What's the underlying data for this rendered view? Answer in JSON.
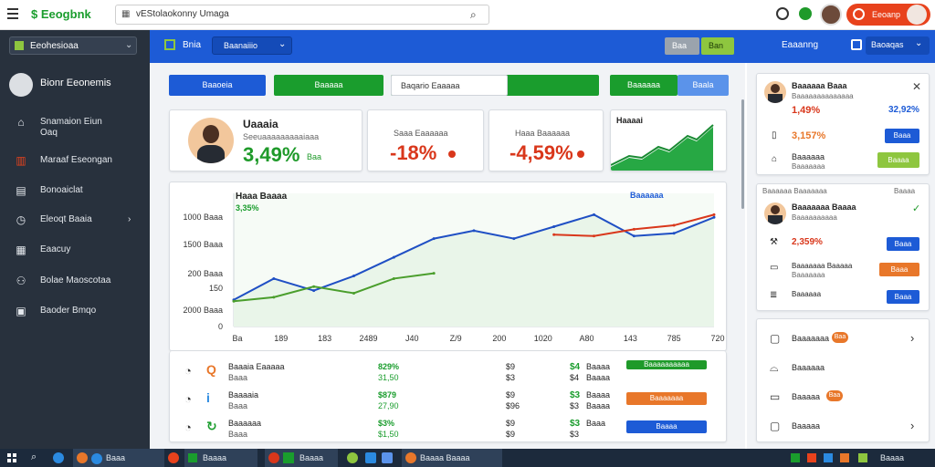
{
  "topbar": {
    "brand": "$ Eeogbnk",
    "search_text": "vEStolaokonny Umaga",
    "red_button": "Eeoanp"
  },
  "sidebar": {
    "select_label": "Eeohesioaa",
    "profile_name": "Bionr Eeonemis",
    "items": [
      {
        "label": "Snamaion Eiun",
        "sub": "Oaq",
        "icon": "home-icon"
      },
      {
        "label": "Maraaf Eseongan",
        "sub": "",
        "icon": "chart-icon"
      },
      {
        "label": "Bonoaiclat",
        "sub": "",
        "icon": "document-icon"
      },
      {
        "label": "Eleoqt Baaia",
        "sub": "",
        "icon": "clock-icon"
      },
      {
        "label": "Eaacuy",
        "sub": "",
        "icon": "calendar-icon"
      },
      {
        "label": "Bolae Maoscotaa",
        "sub": "",
        "icon": "users-icon"
      },
      {
        "label": "Baoder Bmqo",
        "sub": "",
        "icon": "briefcase-icon"
      }
    ]
  },
  "band": {
    "left_label": "Bnia",
    "tab_label": "Baanaiiio",
    "gray_btn": "Baa",
    "green_btn": "Ban",
    "right_title": "Eaaanng",
    "right_select": "Baoaqas"
  },
  "toolbar": {
    "btn_blue": "Baaoeia",
    "btn_green": "Baaaaa",
    "input_text": "Baqario Eaaaaa",
    "btn_green2": "Baaaaaa",
    "btn_lightblue": "Baala"
  },
  "kpis": [
    {
      "title": "Uaaaia",
      "subtitle": "Seeuaaaaaaaaaiaaa",
      "value": "3,49%",
      "tag": "Baa",
      "value_color": "#1f9a2a"
    },
    {
      "title": "Saaa Eaaaaaa",
      "value": "-18%",
      "value_color": "#d9371b"
    },
    {
      "title": "Haaa Baaaaaa",
      "value": "-4,59%",
      "value_color": "#d9371b"
    },
    {
      "title": "Haaaai"
    }
  ],
  "chart_data": {
    "type": "line",
    "title": "Haaa Baaaa",
    "subtitle": "3,35%",
    "legend_label": "Baaaaaa",
    "legend_button": "Baaaa",
    "y_tick_labels": [
      "1000 Baaa",
      "1500 Baaa",
      "200 Baaa",
      "150",
      "2000 Baaa",
      "0"
    ],
    "x_tick_labels": [
      "Ba",
      "189",
      "183",
      "2489",
      "J40",
      "Z/9",
      "200",
      "1020",
      "A80",
      "143",
      "785",
      "720"
    ],
    "series": [
      {
        "name": "blue",
        "color": "#1f4fc4",
        "values": [
          2.0,
          3.6,
          2.7,
          3.8,
          5.2,
          6.6,
          7.2,
          6.6,
          7.5,
          8.4,
          6.8,
          7.0,
          8.2
        ]
      },
      {
        "name": "green",
        "color": "#4a9e2c",
        "values": [
          1.9,
          2.2,
          3.0,
          2.5,
          3.6,
          4.0
        ]
      },
      {
        "name": "red",
        "color": "#d9371b",
        "values": [
          6.9,
          6.8,
          7.3,
          7.6,
          8.4
        ]
      }
    ],
    "ylim": [
      0,
      10
    ]
  },
  "table": {
    "rows": [
      {
        "name": "Baaaia Eaaaaa",
        "sub": "Baaa",
        "v1": "829%",
        "v1b": "31,50",
        "v2": "$9",
        "v2b": "$3",
        "v3": "$4",
        "v3b": "$4",
        "v4": "Baaaa",
        "v4b": "Baaaa",
        "tag": "Baaaaaaaaaa",
        "tag_color": "#1f9a2a",
        "icon": "search-icon"
      },
      {
        "name": "Baaaaia",
        "sub": "Baaa",
        "v1": "$879",
        "v1b": "27,90",
        "v2": "$9",
        "v2b": "$96",
        "v3": "$3",
        "v3b": "$3",
        "v4": "Baaaa",
        "v4b": "Baaaa",
        "tag": "Baaaaaaa",
        "tag_color": "#e8772a",
        "icon": "info-icon"
      },
      {
        "name": "Baaaaaa",
        "sub": "Baaa",
        "v1": "$3%",
        "v1b": "$1,50",
        "v2": "$9",
        "v2b": "$9",
        "v3": "$3",
        "v3b": "$3",
        "v4": "Baaa",
        "v4b": "",
        "tag": "Baaaa",
        "tag_color": "#1d5bd6",
        "icon": "refresh-icon"
      }
    ]
  },
  "right": {
    "card1": {
      "name": "Baaaaaa Baaa",
      "sub": "Baaaaaaaaaaaaaa",
      "left_value": "1,49%",
      "right_value": "32,92%",
      "row2_value": "3,157%",
      "row2_btn": "Baaa",
      "row3_label": "Baaaaaa",
      "row3_sub": "Baaaaaaa",
      "row3_btn": "Baaaa"
    },
    "card2": {
      "header": "Baaaaaa Baaaaaaa",
      "header_right": "Baaaa",
      "name": "Baaaaaaa Baaaa",
      "sub": "Baaaaaaaaaa",
      "row1_value": "2,359%",
      "row1_btn": "Baaa",
      "row2_label": "Baaaaaaa Baaaaa",
      "row2_sub": "Baaaaaaa",
      "row2_btn": "Baaa",
      "row3_label": "Baaaaaa",
      "row3_btn": "Baaa"
    },
    "card3": {
      "items": [
        {
          "label": "Baaaaaaa",
          "badge": "Baa",
          "icon": "square-icon",
          "chevron": true
        },
        {
          "label": "Baaaaaa",
          "badge": "",
          "icon": "bag-icon",
          "chevron": false
        },
        {
          "label": "Baaaaa",
          "badge": "Baa",
          "icon": "inbox-icon",
          "chevron": false
        },
        {
          "label": "Baaaaa",
          "badge": "",
          "icon": "chat-icon",
          "chevron": true
        }
      ]
    }
  },
  "taskbar": {
    "items": [
      "Baaa",
      "Baaaa",
      "Baaaa",
      "Baaaa Baaaa",
      "Baaaa"
    ]
  }
}
